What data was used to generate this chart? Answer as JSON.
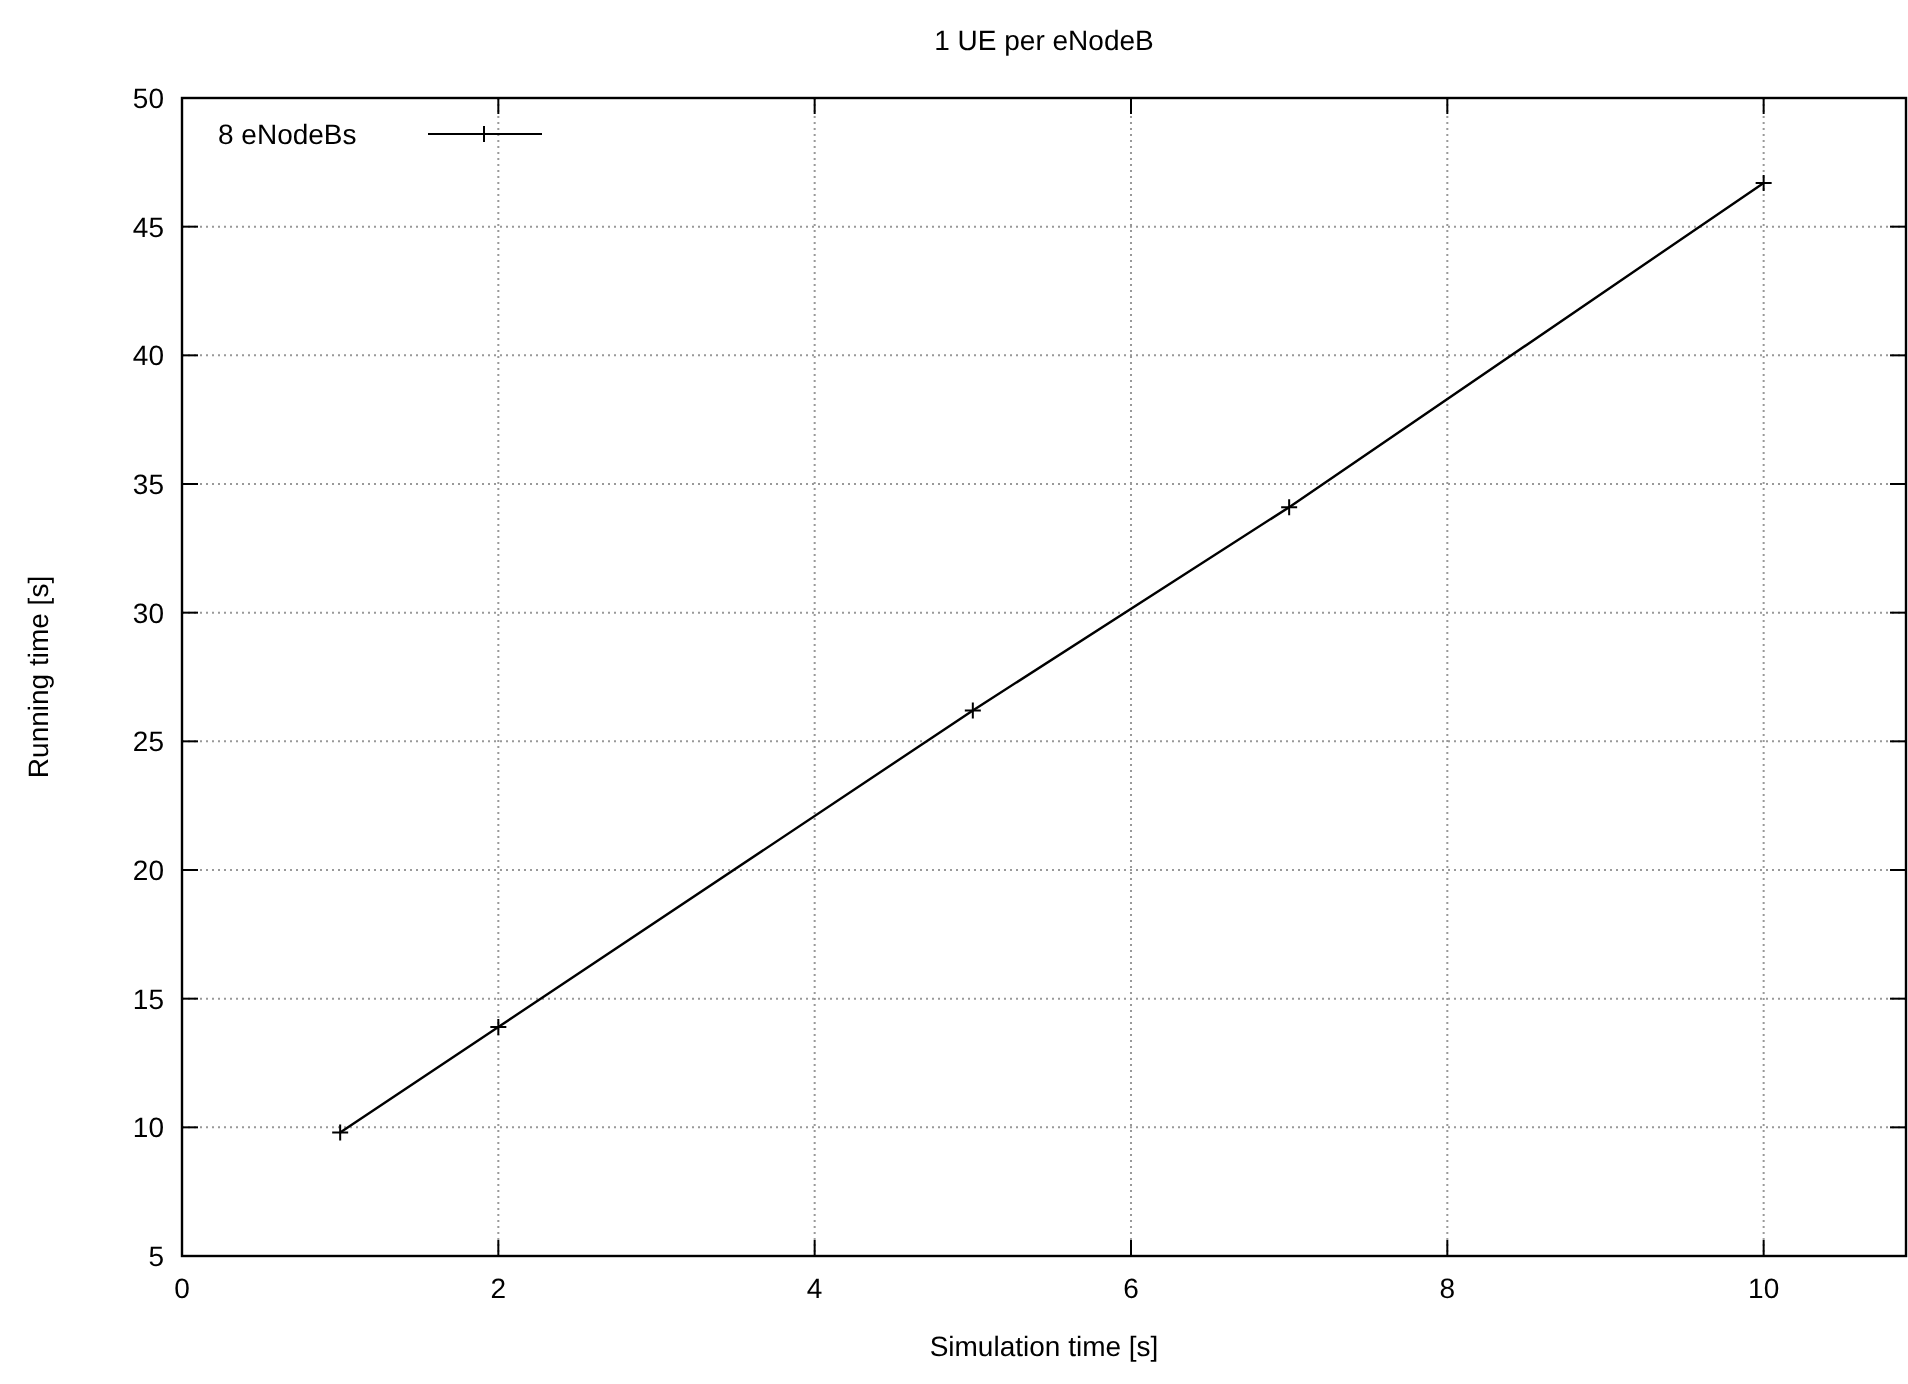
{
  "chart_data": {
    "type": "line",
    "title": "1 UE per eNodeB",
    "xlabel": "Simulation time [s]",
    "ylabel": "Running time [s]",
    "x": [
      1,
      2,
      5,
      7,
      10
    ],
    "series": [
      {
        "name": "8 eNodeBs",
        "color": "#000000",
        "values": [
          9.8,
          13.9,
          26.2,
          34.1,
          46.7
        ]
      }
    ],
    "xlim": [
      0,
      10.9
    ],
    "xticks": [
      0,
      2,
      4,
      6,
      8,
      10
    ],
    "ylim": [
      5,
      50
    ],
    "yticks": [
      5,
      10,
      15,
      20,
      25,
      30,
      35,
      40,
      45,
      50
    ],
    "grid": true,
    "legend": "top left",
    "marker": "cross",
    "line_style": "solid"
  }
}
